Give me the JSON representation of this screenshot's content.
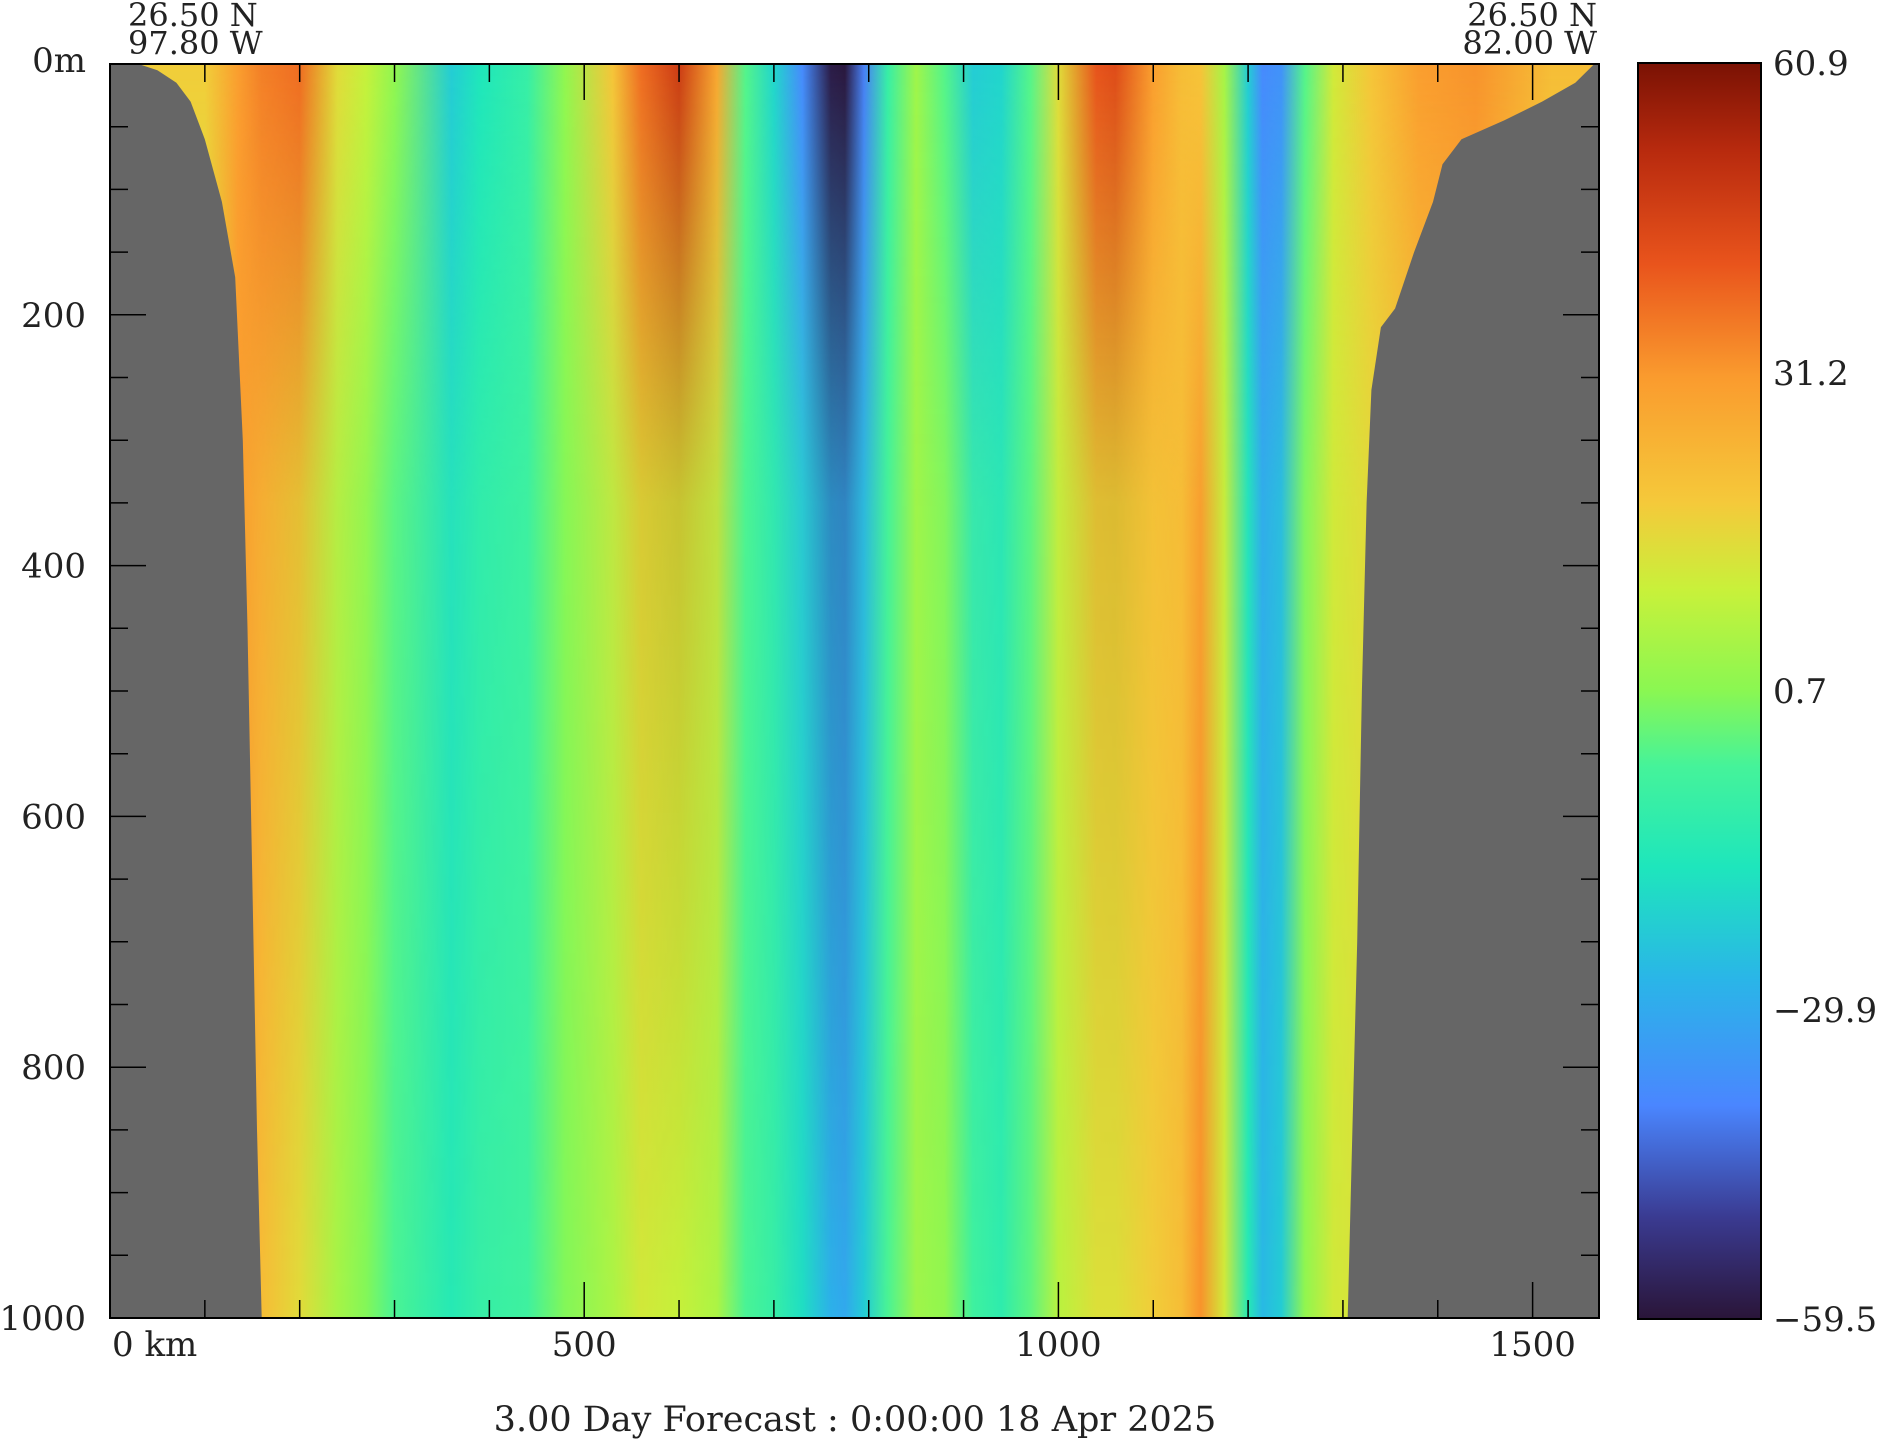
{
  "chart_data": {
    "type": "heatmap",
    "title": "3.00 Day Forecast :  0:00:00  18 Apr 2025",
    "xlabel": "",
    "ylabel": "",
    "x_unit_label": "km",
    "y_unit_label": "m",
    "xlim": [
      0,
      1570
    ],
    "ylim": [
      0,
      1000
    ],
    "x_ticks": [
      0,
      500,
      1000,
      1500
    ],
    "x_tick_labels": [
      "0 km",
      "500",
      "1000",
      "1500"
    ],
    "y_ticks": [
      0,
      200,
      400,
      600,
      800,
      1000
    ],
    "y_tick_labels": [
      "0m",
      "200",
      "400",
      "600",
      "800",
      "1000"
    ],
    "start_point": {
      "lat": "26.50 N",
      "lon": "97.80 W"
    },
    "end_point": {
      "lat": "26.50 N",
      "lon": "82.00 W"
    },
    "colorbar": {
      "min": -59.5,
      "max": 60.9,
      "tick_values": [
        60.9,
        31.2,
        0.7,
        -29.9,
        -59.5
      ],
      "tick_labels": [
        "60.9",
        "31.2",
        "0.7",
        "−29.9",
        "−59.5"
      ]
    },
    "land_color": "#666666",
    "surface_color": "#bfe3f7",
    "bands": [
      {
        "x": 100,
        "top": 18,
        "deep": 10
      },
      {
        "x": 135,
        "top": 30,
        "deep": 30
      },
      {
        "x": 160,
        "top": 35,
        "deep": 22
      },
      {
        "x": 200,
        "top": 38,
        "deep": 15
      },
      {
        "x": 240,
        "top": 15,
        "deep": 5
      },
      {
        "x": 270,
        "top": 10,
        "deep": 0
      },
      {
        "x": 300,
        "top": 2,
        "deep": -6
      },
      {
        "x": 360,
        "top": -22,
        "deep": -14
      },
      {
        "x": 390,
        "top": -16,
        "deep": -10
      },
      {
        "x": 440,
        "top": -10,
        "deep": -8
      },
      {
        "x": 480,
        "top": 2,
        "deep": 0
      },
      {
        "x": 530,
        "top": 20,
        "deep": 6
      },
      {
        "x": 560,
        "top": 38,
        "deep": 12
      },
      {
        "x": 600,
        "top": 48,
        "deep": 10
      },
      {
        "x": 640,
        "top": 28,
        "deep": 6
      },
      {
        "x": 670,
        "top": -5,
        "deep": -6
      },
      {
        "x": 700,
        "top": -20,
        "deep": -10
      },
      {
        "x": 730,
        "top": -38,
        "deep": -18
      },
      {
        "x": 760,
        "top": -58,
        "deep": -28
      },
      {
        "x": 775,
        "top": -59,
        "deep": -30
      },
      {
        "x": 795,
        "top": -40,
        "deep": -22
      },
      {
        "x": 820,
        "top": -10,
        "deep": -6
      },
      {
        "x": 850,
        "top": 4,
        "deep": 4
      },
      {
        "x": 880,
        "top": -5,
        "deep": 2
      },
      {
        "x": 910,
        "top": -22,
        "deep": -8
      },
      {
        "x": 940,
        "top": -20,
        "deep": -12
      },
      {
        "x": 970,
        "top": -5,
        "deep": -4
      },
      {
        "x": 1000,
        "top": 15,
        "deep": 8
      },
      {
        "x": 1040,
        "top": 42,
        "deep": 14
      },
      {
        "x": 1060,
        "top": 44,
        "deep": 14
      },
      {
        "x": 1100,
        "top": 30,
        "deep": 18
      },
      {
        "x": 1130,
        "top": 22,
        "deep": 22
      },
      {
        "x": 1150,
        "top": 20,
        "deep": 32
      },
      {
        "x": 1175,
        "top": 5,
        "deep": 12
      },
      {
        "x": 1200,
        "top": -22,
        "deep": -14
      },
      {
        "x": 1215,
        "top": -38,
        "deep": -26
      },
      {
        "x": 1235,
        "top": -36,
        "deep": -22
      },
      {
        "x": 1260,
        "top": -5,
        "deep": 2
      },
      {
        "x": 1290,
        "top": 12,
        "deep": 12
      },
      {
        "x": 1330,
        "top": 20,
        "deep": 14
      },
      {
        "x": 1380,
        "top": 30,
        "deep": 18
      },
      {
        "x": 1440,
        "top": 32,
        "deep": 20
      },
      {
        "x": 1520,
        "top": 22,
        "deep": 14
      }
    ],
    "bathymetry_left": [
      [
        0,
        0
      ],
      [
        30,
        0
      ],
      [
        50,
        5
      ],
      [
        70,
        15
      ],
      [
        85,
        30
      ],
      [
        100,
        60
      ],
      [
        118,
        110
      ],
      [
        132,
        170
      ],
      [
        140,
        300
      ],
      [
        145,
        450
      ],
      [
        150,
        650
      ],
      [
        155,
        850
      ],
      [
        160,
        1000
      ]
    ],
    "bathymetry_right": [
      [
        1305,
        1000
      ],
      [
        1310,
        850
      ],
      [
        1315,
        700
      ],
      [
        1320,
        500
      ],
      [
        1325,
        350
      ],
      [
        1330,
        260
      ],
      [
        1340,
        210
      ],
      [
        1355,
        195
      ],
      [
        1375,
        150
      ],
      [
        1395,
        110
      ],
      [
        1405,
        80
      ],
      [
        1425,
        60
      ],
      [
        1470,
        45
      ],
      [
        1510,
        30
      ],
      [
        1545,
        15
      ],
      [
        1565,
        0
      ],
      [
        1570,
        0
      ]
    ]
  }
}
